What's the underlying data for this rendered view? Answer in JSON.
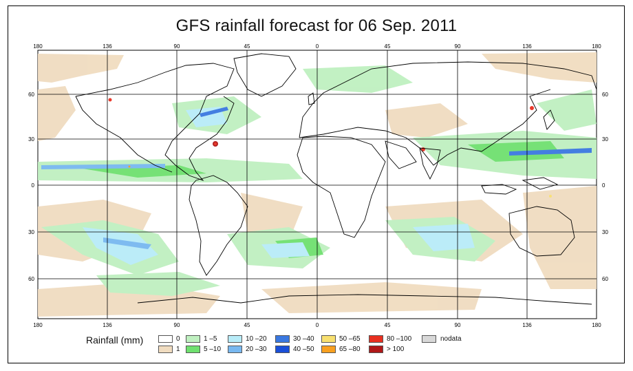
{
  "title": "GFS rainfall forecast for 06 Sep. 2011",
  "axes": {
    "lon_labels": [
      "180",
      "136",
      "90",
      "45",
      "0",
      "45",
      "90",
      "136",
      "180"
    ],
    "lat_labels": [
      "60",
      "30",
      "0",
      "30",
      "60"
    ]
  },
  "legend": {
    "title": "Rainfall (mm)",
    "items": [
      {
        "label": "0",
        "color": "#ffffff"
      },
      {
        "label": "1",
        "color": "#f0dcc0"
      },
      {
        "label": "1 –5",
        "color": "#bff0c0"
      },
      {
        "label": "5 –10",
        "color": "#6fe06f"
      },
      {
        "label": "10 –20",
        "color": "#b8ecf8"
      },
      {
        "label": "20 –30",
        "color": "#78b8f0"
      },
      {
        "label": "30 –40",
        "color": "#3a78e0"
      },
      {
        "label": "40 –50",
        "color": "#1a4fd8"
      },
      {
        "label": "50 –65",
        "color": "#f8e070"
      },
      {
        "label": "65 –80",
        "color": "#f8a020"
      },
      {
        "label": "80 –100",
        "color": "#e83020"
      },
      {
        "label": "> 100",
        "color": "#b01818"
      },
      {
        "label": "nodata",
        "color": "#d8d8d8"
      }
    ]
  },
  "colors": {
    "ocean": "#ffffff",
    "land_outline": "#000000",
    "grid": "#000000"
  }
}
